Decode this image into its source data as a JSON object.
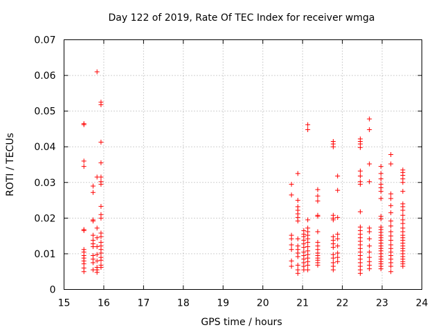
{
  "chart_data": {
    "type": "scatter",
    "title": "Day 122 of 2019, Rate Of TEC Index for receiver wmga",
    "xlabel": "GPS time / hours",
    "ylabel": "ROTI / TECUs",
    "xlim": [
      15,
      24
    ],
    "ylim": [
      0,
      0.07
    ],
    "xticks": [
      15,
      16,
      17,
      18,
      19,
      20,
      21,
      22,
      23,
      24
    ],
    "xtick_labels": [
      "15",
      "16",
      "17",
      "18",
      "19",
      "20",
      "21",
      "22",
      "23",
      "24"
    ],
    "yticks": [
      0,
      0.01,
      0.02,
      0.03,
      0.04,
      0.05,
      0.06,
      0.07
    ],
    "ytick_labels": [
      "0",
      "0.01",
      "0.02",
      "0.03",
      "0.04",
      "0.05",
      "0.06",
      "0.07"
    ],
    "grid": true,
    "marker": "+",
    "color": "#ff0000",
    "series": [
      {
        "name": "ROTI",
        "points": [
          [
            15.5,
            0.0465
          ],
          [
            15.5,
            0.0462
          ],
          [
            15.5,
            0.036
          ],
          [
            15.5,
            0.0345
          ],
          [
            15.5,
            0.0168
          ],
          [
            15.5,
            0.0165
          ],
          [
            15.5,
            0.0112
          ],
          [
            15.5,
            0.0105
          ],
          [
            15.5,
            0.0095
          ],
          [
            15.5,
            0.0088
          ],
          [
            15.5,
            0.008
          ],
          [
            15.5,
            0.0072
          ],
          [
            15.5,
            0.006
          ],
          [
            15.5,
            0.005
          ],
          [
            15.73,
            0.029
          ],
          [
            15.73,
            0.0272
          ],
          [
            15.73,
            0.0195
          ],
          [
            15.73,
            0.0192
          ],
          [
            15.73,
            0.0152
          ],
          [
            15.73,
            0.0138
          ],
          [
            15.73,
            0.0128
          ],
          [
            15.73,
            0.012
          ],
          [
            15.73,
            0.0095
          ],
          [
            15.73,
            0.0085
          ],
          [
            15.73,
            0.0075
          ],
          [
            15.73,
            0.0055
          ],
          [
            15.83,
            0.061
          ],
          [
            15.83,
            0.0315
          ],
          [
            15.83,
            0.0172
          ],
          [
            15.83,
            0.0145
          ],
          [
            15.83,
            0.012
          ],
          [
            15.83,
            0.0098
          ],
          [
            15.83,
            0.008
          ],
          [
            15.83,
            0.0062
          ],
          [
            15.83,
            0.0055
          ],
          [
            15.83,
            0.0048
          ],
          [
            15.93,
            0.0525
          ],
          [
            15.93,
            0.0518
          ],
          [
            15.93,
            0.0413
          ],
          [
            15.93,
            0.0355
          ],
          [
            15.93,
            0.0315
          ],
          [
            15.93,
            0.0302
          ],
          [
            15.93,
            0.0295
          ],
          [
            15.93,
            0.0233
          ],
          [
            15.93,
            0.021
          ],
          [
            15.93,
            0.02
          ],
          [
            15.93,
            0.0158
          ],
          [
            15.93,
            0.0148
          ],
          [
            15.93,
            0.0132
          ],
          [
            15.93,
            0.0122
          ],
          [
            15.93,
            0.0112
          ],
          [
            15.93,
            0.0102
          ],
          [
            15.93,
            0.009
          ],
          [
            15.93,
            0.0082
          ],
          [
            15.93,
            0.0068
          ],
          [
            15.93,
            0.0062
          ],
          [
            20.72,
            0.0295
          ],
          [
            20.72,
            0.0265
          ],
          [
            20.72,
            0.0152
          ],
          [
            20.72,
            0.0142
          ],
          [
            20.72,
            0.0125
          ],
          [
            20.72,
            0.0112
          ],
          [
            20.72,
            0.008
          ],
          [
            20.72,
            0.0065
          ],
          [
            20.88,
            0.0325
          ],
          [
            20.88,
            0.025
          ],
          [
            20.88,
            0.0232
          ],
          [
            20.88,
            0.0222
          ],
          [
            20.88,
            0.0212
          ],
          [
            20.88,
            0.0202
          ],
          [
            20.88,
            0.0192
          ],
          [
            20.88,
            0.0142
          ],
          [
            20.88,
            0.0122
          ],
          [
            20.88,
            0.0112
          ],
          [
            20.88,
            0.0102
          ],
          [
            20.88,
            0.0092
          ],
          [
            20.88,
            0.0068
          ],
          [
            20.88,
            0.0055
          ],
          [
            20.88,
            0.0045
          ],
          [
            21.03,
            0.0165
          ],
          [
            21.03,
            0.0155
          ],
          [
            21.03,
            0.0148
          ],
          [
            21.03,
            0.0138
          ],
          [
            21.03,
            0.0128
          ],
          [
            21.03,
            0.0118
          ],
          [
            21.03,
            0.0105
          ],
          [
            21.03,
            0.0095
          ],
          [
            21.03,
            0.0085
          ],
          [
            21.03,
            0.0075
          ],
          [
            21.03,
            0.0065
          ],
          [
            21.03,
            0.0055
          ],
          [
            21.13,
            0.0462
          ],
          [
            21.13,
            0.0448
          ],
          [
            21.13,
            0.0195
          ],
          [
            21.13,
            0.0172
          ],
          [
            21.13,
            0.0162
          ],
          [
            21.13,
            0.0152
          ],
          [
            21.13,
            0.0142
          ],
          [
            21.13,
            0.0132
          ],
          [
            21.13,
            0.012
          ],
          [
            21.13,
            0.0108
          ],
          [
            21.13,
            0.0098
          ],
          [
            21.13,
            0.0088
          ],
          [
            21.13,
            0.0078
          ],
          [
            21.13,
            0.0068
          ],
          [
            21.13,
            0.0055
          ],
          [
            21.38,
            0.028
          ],
          [
            21.38,
            0.0262
          ],
          [
            21.38,
            0.0248
          ],
          [
            21.38,
            0.0208
          ],
          [
            21.38,
            0.0205
          ],
          [
            21.38,
            0.0162
          ],
          [
            21.38,
            0.0132
          ],
          [
            21.38,
            0.0122
          ],
          [
            21.38,
            0.0112
          ],
          [
            21.38,
            0.0102
          ],
          [
            21.38,
            0.0095
          ],
          [
            21.38,
            0.0088
          ],
          [
            21.38,
            0.0082
          ],
          [
            21.38,
            0.0075
          ],
          [
            21.38,
            0.0068
          ],
          [
            21.77,
            0.0415
          ],
          [
            21.77,
            0.0408
          ],
          [
            21.77,
            0.04
          ],
          [
            21.77,
            0.0208
          ],
          [
            21.77,
            0.02
          ],
          [
            21.77,
            0.0195
          ],
          [
            21.77,
            0.0148
          ],
          [
            21.77,
            0.0138
          ],
          [
            21.77,
            0.0128
          ],
          [
            21.77,
            0.0118
          ],
          [
            21.77,
            0.0098
          ],
          [
            21.77,
            0.0088
          ],
          [
            21.77,
            0.0075
          ],
          [
            21.77,
            0.0065
          ],
          [
            21.77,
            0.0055
          ],
          [
            21.88,
            0.0318
          ],
          [
            21.88,
            0.0278
          ],
          [
            21.88,
            0.0202
          ],
          [
            21.88,
            0.0155
          ],
          [
            21.88,
            0.0142
          ],
          [
            21.88,
            0.0122
          ],
          [
            21.88,
            0.0102
          ],
          [
            21.88,
            0.009
          ],
          [
            21.88,
            0.0078
          ],
          [
            22.45,
            0.0422
          ],
          [
            22.45,
            0.0415
          ],
          [
            22.45,
            0.0408
          ],
          [
            22.45,
            0.0398
          ],
          [
            22.45,
            0.0332
          ],
          [
            22.45,
            0.0318
          ],
          [
            22.45,
            0.0302
          ],
          [
            22.45,
            0.0295
          ],
          [
            22.45,
            0.0218
          ],
          [
            22.45,
            0.0175
          ],
          [
            22.45,
            0.0165
          ],
          [
            22.45,
            0.0155
          ],
          [
            22.45,
            0.0145
          ],
          [
            22.45,
            0.0135
          ],
          [
            22.45,
            0.0125
          ],
          [
            22.45,
            0.0115
          ],
          [
            22.45,
            0.0105
          ],
          [
            22.45,
            0.0095
          ],
          [
            22.45,
            0.0085
          ],
          [
            22.45,
            0.0075
          ],
          [
            22.45,
            0.0065
          ],
          [
            22.45,
            0.0055
          ],
          [
            22.45,
            0.0045
          ],
          [
            22.68,
            0.0478
          ],
          [
            22.68,
            0.0448
          ],
          [
            22.68,
            0.0352
          ],
          [
            22.68,
            0.0302
          ],
          [
            22.68,
            0.0172
          ],
          [
            22.68,
            0.0162
          ],
          [
            22.68,
            0.0142
          ],
          [
            22.68,
            0.0122
          ],
          [
            22.68,
            0.0105
          ],
          [
            22.68,
            0.009
          ],
          [
            22.68,
            0.0078
          ],
          [
            22.68,
            0.0068
          ],
          [
            22.68,
            0.0058
          ],
          [
            22.97,
            0.0345
          ],
          [
            22.97,
            0.0325
          ],
          [
            22.97,
            0.031
          ],
          [
            22.97,
            0.0295
          ],
          [
            22.97,
            0.0285
          ],
          [
            22.97,
            0.0275
          ],
          [
            22.97,
            0.0255
          ],
          [
            22.97,
            0.0205
          ],
          [
            22.97,
            0.0198
          ],
          [
            22.97,
            0.0175
          ],
          [
            22.97,
            0.0168
          ],
          [
            22.97,
            0.016
          ],
          [
            22.97,
            0.0152
          ],
          [
            22.97,
            0.0145
          ],
          [
            22.97,
            0.0138
          ],
          [
            22.97,
            0.013
          ],
          [
            22.97,
            0.0122
          ],
          [
            22.97,
            0.0115
          ],
          [
            22.97,
            0.0108
          ],
          [
            22.97,
            0.01
          ],
          [
            22.97,
            0.0092
          ],
          [
            22.97,
            0.0085
          ],
          [
            22.97,
            0.0078
          ],
          [
            22.97,
            0.0072
          ],
          [
            22.97,
            0.0065
          ],
          [
            22.97,
            0.0058
          ],
          [
            23.22,
            0.0378
          ],
          [
            23.22,
            0.0352
          ],
          [
            23.22,
            0.0268
          ],
          [
            23.22,
            0.0255
          ],
          [
            23.22,
            0.0235
          ],
          [
            23.22,
            0.0215
          ],
          [
            23.22,
            0.0192
          ],
          [
            23.22,
            0.0178
          ],
          [
            23.22,
            0.0162
          ],
          [
            23.22,
            0.015
          ],
          [
            23.22,
            0.0138
          ],
          [
            23.22,
            0.0125
          ],
          [
            23.22,
            0.0115
          ],
          [
            23.22,
            0.0105
          ],
          [
            23.22,
            0.0095
          ],
          [
            23.22,
            0.0085
          ],
          [
            23.22,
            0.0075
          ],
          [
            23.22,
            0.0065
          ],
          [
            23.22,
            0.005
          ],
          [
            23.52,
            0.0335
          ],
          [
            23.52,
            0.0328
          ],
          [
            23.52,
            0.032
          ],
          [
            23.52,
            0.031
          ],
          [
            23.52,
            0.03
          ],
          [
            23.52,
            0.0275
          ],
          [
            23.52,
            0.024
          ],
          [
            23.52,
            0.0232
          ],
          [
            23.52,
            0.0222
          ],
          [
            23.52,
            0.0208
          ],
          [
            23.52,
            0.0195
          ],
          [
            23.52,
            0.0185
          ],
          [
            23.52,
            0.0172
          ],
          [
            23.52,
            0.0162
          ],
          [
            23.52,
            0.0152
          ],
          [
            23.52,
            0.0145
          ],
          [
            23.52,
            0.0138
          ],
          [
            23.52,
            0.013
          ],
          [
            23.52,
            0.0122
          ],
          [
            23.52,
            0.0115
          ],
          [
            23.52,
            0.0108
          ],
          [
            23.52,
            0.01
          ],
          [
            23.52,
            0.0092
          ],
          [
            23.52,
            0.0085
          ],
          [
            23.52,
            0.0078
          ],
          [
            23.52,
            0.0072
          ],
          [
            23.52,
            0.0065
          ]
        ]
      }
    ]
  }
}
